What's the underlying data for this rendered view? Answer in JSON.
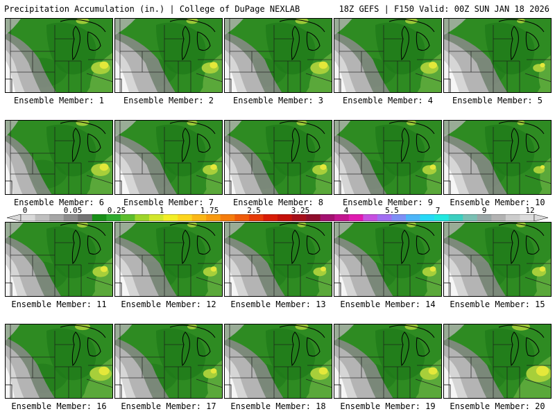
{
  "header": {
    "title_left": "Precipitation Accumulation (in.) | College of DuPage NEXLAB",
    "title_right": "18Z GEFS | F150 Valid: 00Z SUN JAN 18 2026"
  },
  "scale": {
    "labels": [
      "0",
      "0.05",
      "0.25",
      "1",
      "1.75",
      "2.5",
      "3.25",
      "4",
      "5.5",
      "7",
      "9",
      "12"
    ],
    "colors": [
      "#d9d9d9",
      "#bfbfbf",
      "#a6a6a6",
      "#8c8c8c",
      "#737373",
      "#188f18",
      "#2faa2f",
      "#5cbd2c",
      "#9ed52a",
      "#d2e62b",
      "#f3ee26",
      "#fdd51d",
      "#fbb716",
      "#f99a10",
      "#f57c0c",
      "#ef5b0a",
      "#e63a08",
      "#d81c06",
      "#c4100a",
      "#a60f1a",
      "#8e0d2b",
      "#a31170",
      "#c2168f",
      "#df1bb0",
      "#c64fe0",
      "#a16ff2",
      "#7d8ff5",
      "#4db5f8",
      "#27d9f7",
      "#22e8e0",
      "#3ccfc0",
      "#7abfb3",
      "#9aa6a6",
      "#b3b3b3",
      "#cccccc",
      "#dcdcdc"
    ]
  },
  "map_colors": {
    "base_green": "#2e8b22",
    "dark_green": "#1f7a1a",
    "light_green": "#5aa83a",
    "yellow_green": "#a7cf3a",
    "yellow": "#e4e83a",
    "gray_dark": "#8a8a8a",
    "gray_mid": "#b4b4b4",
    "gray_light": "#d6d6d6",
    "white": "#f6f6f6"
  },
  "members": [
    {
      "label": "Ensemble Member: 1",
      "dry": 0.55,
      "yellow": 0.55
    },
    {
      "label": "Ensemble Member: 2",
      "dry": 0.85,
      "yellow": 0.45
    },
    {
      "label": "Ensemble Member: 3",
      "dry": 0.75,
      "yellow": 0.55
    },
    {
      "label": "Ensemble Member: 4",
      "dry": 0.7,
      "yellow": 0.5
    },
    {
      "label": "Ensemble Member: 5",
      "dry": 0.95,
      "yellow": 0.2
    },
    {
      "label": "Ensemble Member: 6",
      "dry": 0.4,
      "yellow": 0.55
    },
    {
      "label": "Ensemble Member: 7",
      "dry": 0.9,
      "yellow": 0.35
    },
    {
      "label": "Ensemble Member: 8",
      "dry": 0.65,
      "yellow": 0.35
    },
    {
      "label": "Ensemble Member: 9",
      "dry": 0.6,
      "yellow": 0.3
    },
    {
      "label": "Ensemble Member: 10",
      "dry": 0.95,
      "yellow": 0.15
    },
    {
      "label": "Ensemble Member: 11",
      "dry": 0.7,
      "yellow": 0.4
    },
    {
      "label": "Ensemble Member: 12",
      "dry": 0.9,
      "yellow": 0.3
    },
    {
      "label": "Ensemble Member: 13",
      "dry": 0.85,
      "yellow": 0.25
    },
    {
      "label": "Ensemble Member: 14",
      "dry": 0.8,
      "yellow": 0.3
    },
    {
      "label": "Ensemble Member: 15",
      "dry": 0.9,
      "yellow": 0.3
    },
    {
      "label": "Ensemble Member: 16",
      "dry": 0.5,
      "yellow": 0.7
    },
    {
      "label": "Ensemble Member: 17",
      "dry": 0.65,
      "yellow": 0.3
    },
    {
      "label": "Ensemble Member: 18",
      "dry": 0.8,
      "yellow": 0.55
    },
    {
      "label": "Ensemble Member: 19",
      "dry": 0.8,
      "yellow": 0.55
    },
    {
      "label": "Ensemble Member: 20",
      "dry": 0.85,
      "yellow": 0.9
    }
  ]
}
